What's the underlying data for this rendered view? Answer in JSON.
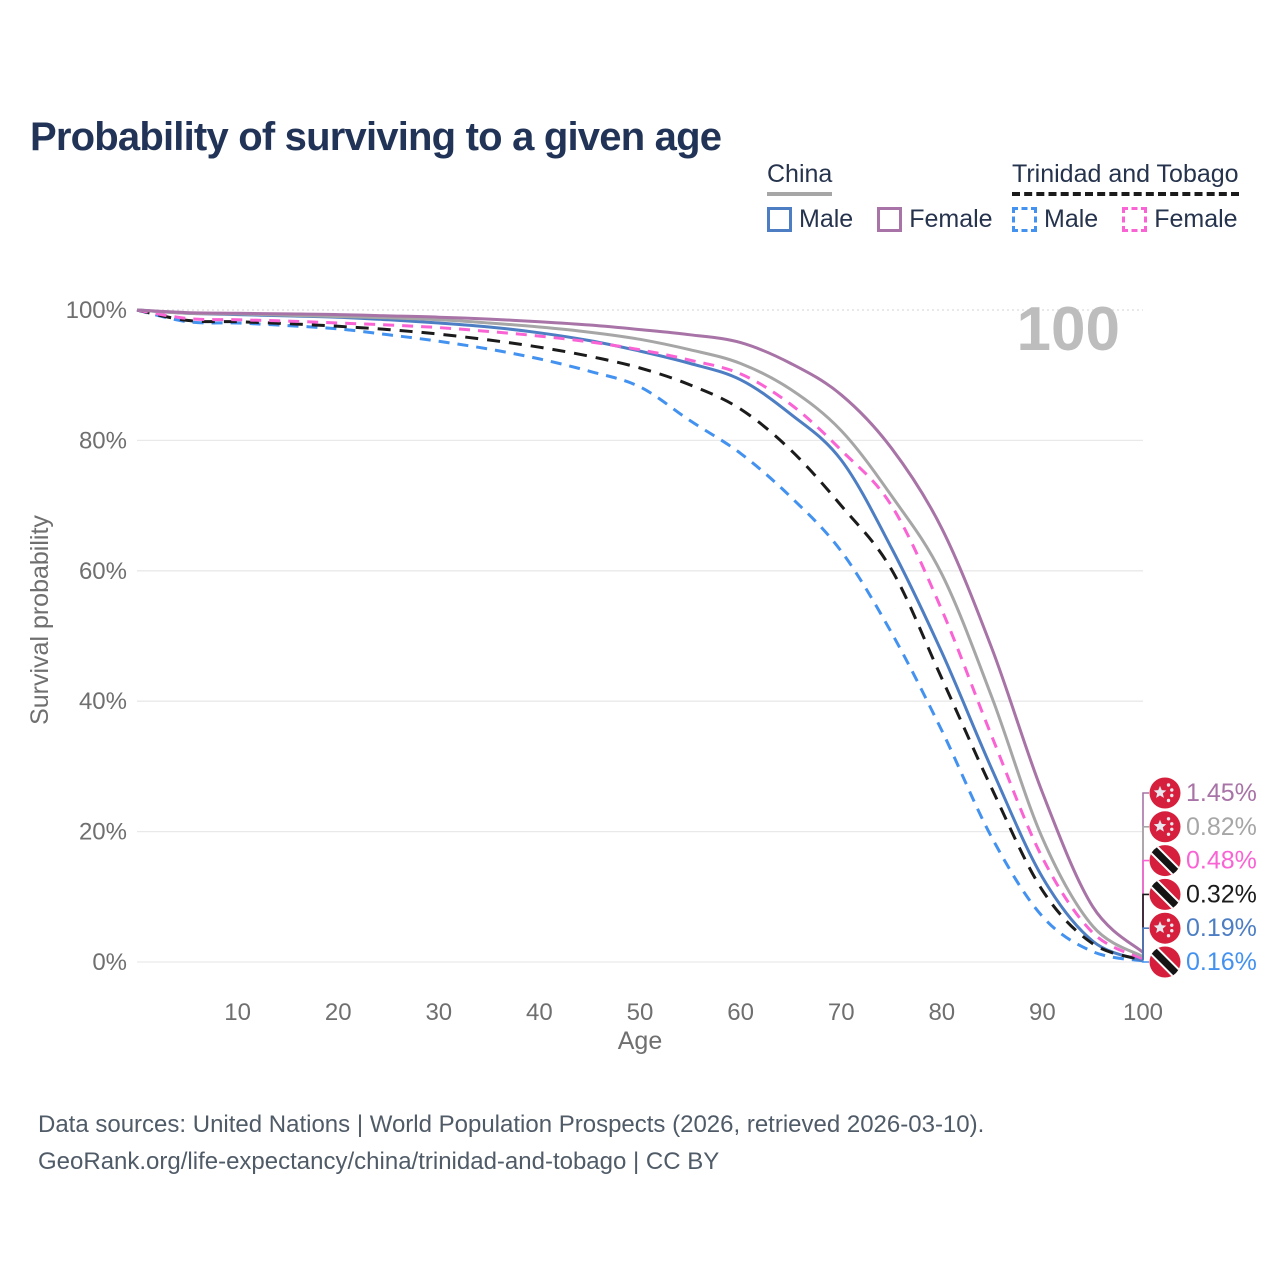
{
  "title": "Probability of surviving to a given age",
  "watermark_age": "100",
  "legend": {
    "china": {
      "title": "China",
      "male_label": "Male",
      "female_label": "Female"
    },
    "tt": {
      "title": "Trinidad and Tobago",
      "male_label": "Male",
      "female_label": "Female"
    }
  },
  "colors": {
    "china_male": "#4d7ec3",
    "china_female": "#a873a6",
    "china_overall": "#a6a6a6",
    "tt_male": "#4492f0",
    "tt_female": "#f963d4",
    "tt_overall": "#1b1b1b",
    "title_text": "#213457",
    "legend_text": "#26334d",
    "axis_text": "#6f6f6f",
    "grid": "#e9e9e9",
    "watermark": "#bdbdbd",
    "footer_text": "#505b68",
    "flag_red": "#d51f3c"
  },
  "chart_data": {
    "type": "line",
    "title": "Probability of surviving to a given age",
    "xlabel": "Age",
    "ylabel": "Survival probability",
    "xlim": [
      0,
      100
    ],
    "ylim": [
      0,
      100
    ],
    "grid": true,
    "legend_position": "top-right",
    "age_indicator": "100",
    "x_ticks": [
      10,
      20,
      30,
      40,
      50,
      60,
      70,
      80,
      90,
      100
    ],
    "y_ticks": [
      {
        "v": 0,
        "label": "0%"
      },
      {
        "v": 20,
        "label": "20%"
      },
      {
        "v": 40,
        "label": "40%"
      },
      {
        "v": 60,
        "label": "60%"
      },
      {
        "v": 80,
        "label": "80%"
      },
      {
        "v": 100,
        "label": "100%"
      }
    ],
    "x": [
      0,
      5,
      10,
      15,
      20,
      25,
      30,
      35,
      40,
      45,
      50,
      55,
      60,
      65,
      70,
      75,
      80,
      85,
      90,
      95,
      100
    ],
    "series": [
      {
        "name": "China — Female",
        "slug": "china-female",
        "country": "China",
        "sex": "Female",
        "color": "#a873a6",
        "dash": null,
        "flag": "china",
        "end_label": "1.45%",
        "values": [
          100,
          99.6,
          99.5,
          99.4,
          99.3,
          99.1,
          98.9,
          98.6,
          98.2,
          97.7,
          97.0,
          96.2,
          95.0,
          91.8,
          87.0,
          78.8,
          66.5,
          48.0,
          26.0,
          8.5,
          1.45
        ]
      },
      {
        "name": "China — Both sexes",
        "slug": "china-both",
        "country": "China",
        "sex": "Both",
        "color": "#a6a6a6",
        "dash": null,
        "flag": "china",
        "end_label": "0.82%",
        "values": [
          100,
          99.5,
          99.4,
          99.2,
          99.0,
          98.8,
          98.5,
          98.0,
          97.4,
          96.6,
          95.5,
          93.9,
          91.8,
          87.8,
          81.5,
          71.5,
          59.5,
          40.5,
          19.0,
          5.5,
          0.82
        ]
      },
      {
        "name": "Trinidad and Tobago — Female",
        "slug": "tt-female",
        "country": "Trinidad and Tobago",
        "sex": "Female",
        "color": "#f963d4",
        "dash": "11 8",
        "flag": "tt",
        "end_label": "0.48%",
        "values": [
          100,
          98.7,
          98.5,
          98.3,
          98.0,
          97.7,
          97.3,
          96.7,
          96.0,
          95.1,
          93.9,
          92.3,
          90.2,
          85.5,
          78.5,
          70.0,
          54.0,
          34.5,
          16.0,
          4.5,
          0.48
        ]
      },
      {
        "name": "Trinidad and Tobago — Both sexes",
        "slug": "tt-both",
        "country": "Trinidad and Tobago",
        "sex": "Both",
        "color": "#1b1b1b",
        "dash": "13 9",
        "flag": "tt",
        "end_label": "0.32%",
        "values": [
          100,
          98.4,
          98.2,
          97.9,
          97.5,
          97.0,
          96.3,
          95.4,
          94.3,
          92.9,
          91.1,
          88.5,
          84.8,
          78.5,
          70.0,
          60.2,
          43.5,
          26.5,
          11.0,
          2.8,
          0.32
        ]
      },
      {
        "name": "China — Male",
        "slug": "china-male",
        "country": "China",
        "sex": "Male",
        "color": "#4d7ec3",
        "dash": null,
        "flag": "china",
        "end_label": "0.19%",
        "values": [
          100,
          99.5,
          99.3,
          99.1,
          98.9,
          98.5,
          98.0,
          97.4,
          96.5,
          95.3,
          93.7,
          91.8,
          89.3,
          84.0,
          77.0,
          63.5,
          47.5,
          29.5,
          13.0,
          3.2,
          0.19
        ]
      },
      {
        "name": "Trinidad and Tobago — Male",
        "slug": "tt-male",
        "country": "Trinidad and Tobago",
        "sex": "Male",
        "color": "#4492f0",
        "dash": "11 8",
        "flag": "tt",
        "end_label": "0.16%",
        "values": [
          100,
          98.2,
          98.0,
          97.6,
          97.1,
          96.2,
          95.2,
          94.0,
          92.5,
          90.6,
          88.2,
          83.0,
          78.0,
          71.3,
          63.0,
          50.5,
          35.5,
          19.0,
          7.0,
          1.6,
          0.16
        ]
      }
    ]
  },
  "footer": {
    "line1": "Data sources: United Nations | World Population Prospects (2026, retrieved 2026-03-10).",
    "line2": "GeoRank.org/life-expectancy/china/trinidad-and-tobago | CC BY"
  }
}
